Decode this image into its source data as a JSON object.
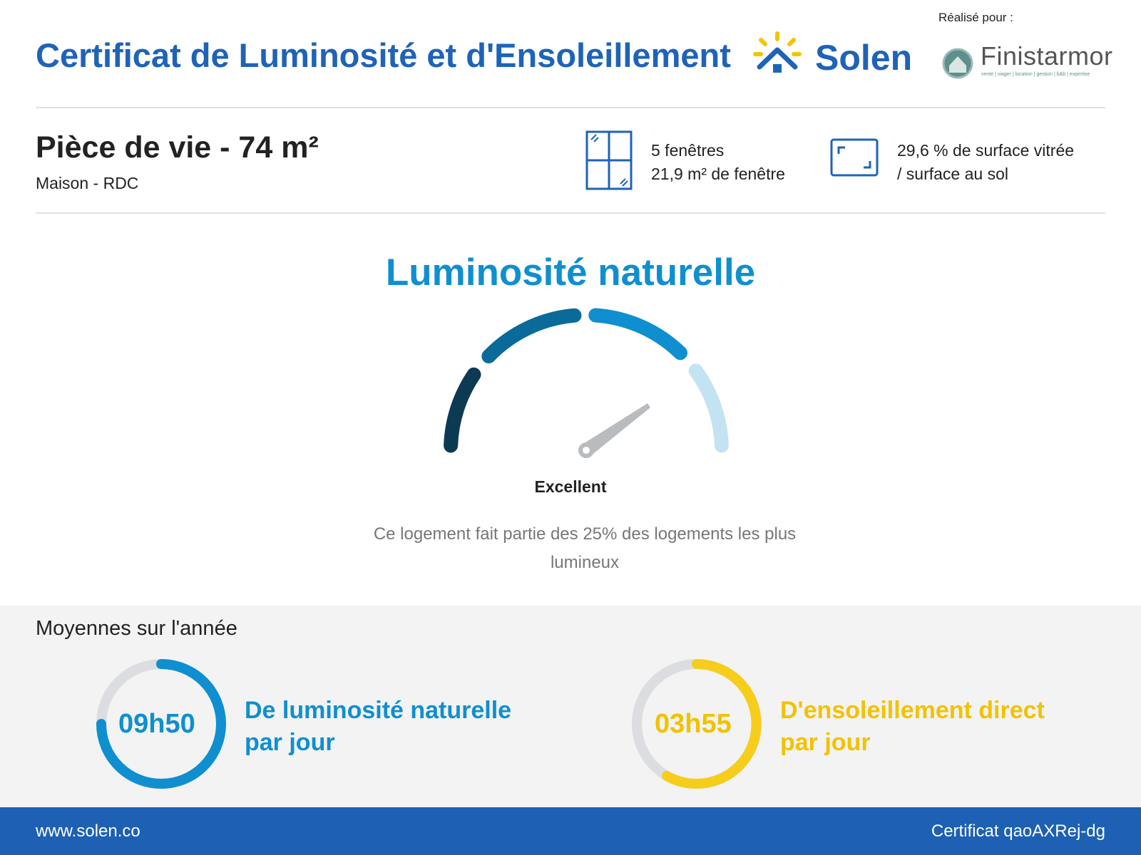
{
  "header": {
    "title": "Certificat de Luminosité et d'Ensoleillement",
    "brand": "Solen",
    "made_for": "Réalisé pour :",
    "client": "Finistarmor",
    "client_tagline": "vente | viager | location | gestion | b&b | expertise"
  },
  "room": {
    "title": "Pièce de vie - 74 m²",
    "subtitle": "Maison - RDC"
  },
  "windows": {
    "count": "5 fenêtres",
    "area": "21,9 m² de fenêtre"
  },
  "glazing": {
    "line1": "29,6 % de surface vitrée",
    "line2": "/ surface au sol"
  },
  "luminosity": {
    "title": "Luminosité naturelle",
    "rating": "Excellent",
    "description": "Ce logement fait partie des 25% des logements les plus lumineux"
  },
  "averages": {
    "title": "Moyennes sur l'année",
    "items": [
      {
        "value": "09h50",
        "line1": "De luminosité naturelle",
        "line2": "par jour"
      },
      {
        "value": "03h55",
        "line1": "D'ensoleillement direct",
        "line2": "par jour"
      }
    ]
  },
  "footer": {
    "website": "www.solen.co",
    "certificate": "Certificat qaoAXRej-dg"
  }
}
